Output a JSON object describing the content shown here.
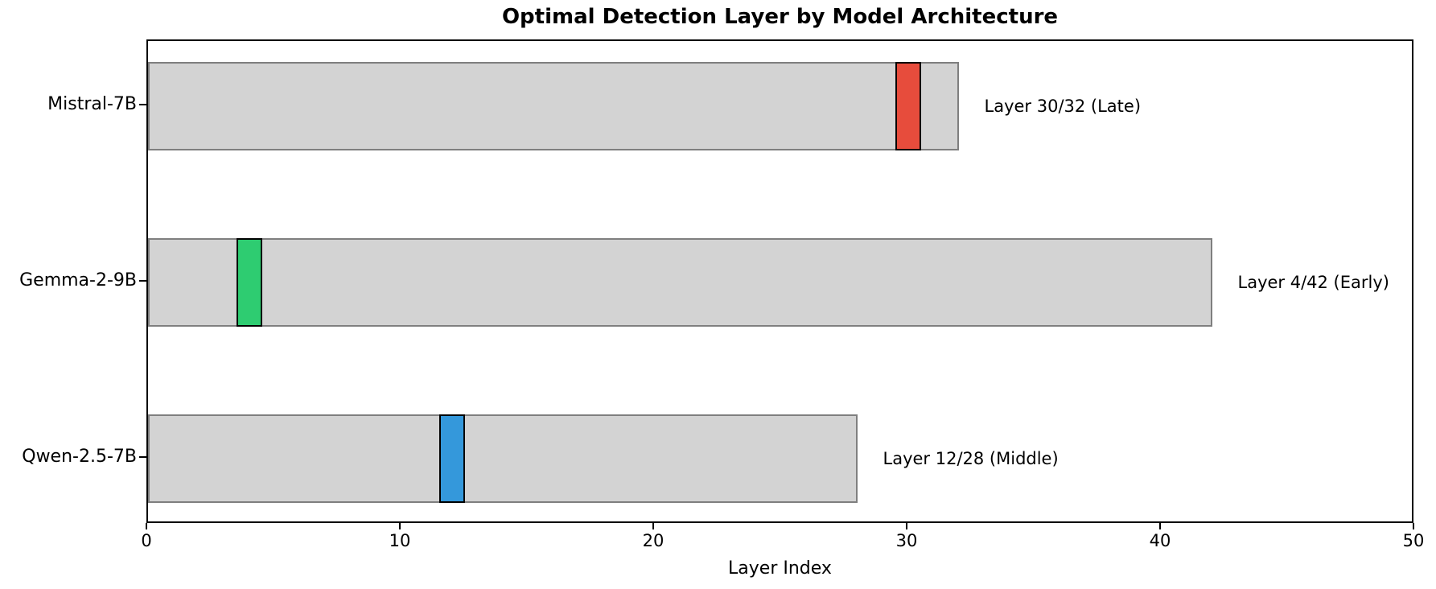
{
  "chart_data": {
    "type": "bar",
    "orientation": "horizontal",
    "title": "Optimal Detection Layer by Model Architecture",
    "xlabel": "Layer Index",
    "xlim": [
      0,
      50
    ],
    "xticks": [
      0,
      10,
      20,
      30,
      40,
      50
    ],
    "grid": false,
    "legend": "none",
    "categories": [
      "Mistral-7B",
      "Gemma-2-9B",
      "Qwen-2.5-7B"
    ],
    "series": [
      {
        "name": "total-layers",
        "values": [
          32,
          42,
          28
        ],
        "fill_color": "#d3d3d3",
        "edge_color": "#7f7f7f"
      },
      {
        "name": "optimal-detection-layer",
        "values": [
          30,
          4,
          12
        ],
        "marker_span": 1,
        "colors": [
          "#e74c3c",
          "#2ecc71",
          "#3498db"
        ],
        "edge_color": "#000000"
      }
    ],
    "annotations": [
      "Layer 30/32 (Late)",
      "Layer 4/42 (Early)",
      "Layer 12/28 (Middle)"
    ],
    "phases": [
      "Late",
      "Early",
      "Middle"
    ]
  }
}
